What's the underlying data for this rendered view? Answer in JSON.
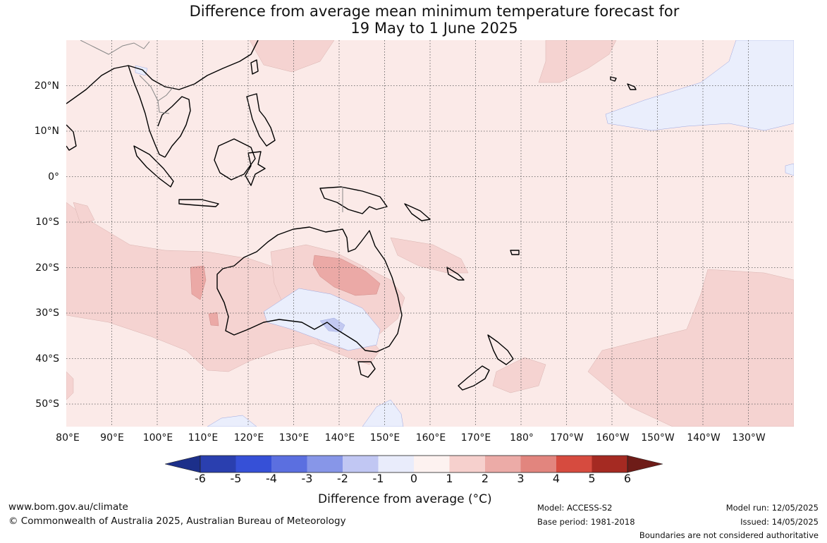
{
  "title": {
    "line1": "Difference from average mean minimum temperature forecast for",
    "line2": "19 May to 1 June 2025"
  },
  "map": {
    "lat_labels": [
      "20°N",
      "10°N",
      "0°",
      "10°S",
      "20°S",
      "30°S",
      "40°S",
      "50°S"
    ],
    "lon_labels": [
      "80°E",
      "90°E",
      "100°E",
      "110°E",
      "120°E",
      "130°E",
      "140°E",
      "150°E",
      "160°E",
      "170°E",
      "180°",
      "170°W",
      "160°W",
      "150°W",
      "140°W",
      "130°W"
    ],
    "extent": {
      "lon_min": 80,
      "lon_max": 240,
      "lat_min": -55,
      "lat_max": 30
    },
    "colors": {
      "ocean_base": "#fbeae8",
      "anomaly_1_2": "#f5d3d1",
      "anomaly_2_3": "#eba9a6",
      "anomaly_neg_0_1": "#eaeefc",
      "anomaly_neg_1_2": "#c3c9f1",
      "anomaly_neg_2_3": "#8a97e6",
      "coast": "#000000",
      "borders": "#888888",
      "grid": "#555555"
    }
  },
  "colorbar": {
    "ticks": [
      "-6",
      "-5",
      "-4",
      "-3",
      "-2",
      "-1",
      "0",
      "1",
      "2",
      "3",
      "4",
      "5",
      "6"
    ],
    "colors": [
      "#1c2f8a",
      "#2a3faf",
      "#3650d7",
      "#5b6fe0",
      "#8796e8",
      "#c1c7f3",
      "#e9ecfb",
      "#fdf2f0",
      "#f6d0cd",
      "#ecaba7",
      "#e2857e",
      "#d64b3f",
      "#a52a22",
      "#6e1c18"
    ],
    "label": "Difference from average (°C)"
  },
  "footer": {
    "website": "www.bom.gov.au/climate",
    "copyright": "© Commonwealth of Australia 2025, Australian Bureau of Meteorology",
    "model": "Model: ACCESS-S2",
    "base_period": "Base period: 1981-2018",
    "model_run": "Model run: 12/05/2025",
    "issued": "Issued: 14/05/2025",
    "disclaimer": "Boundaries are not considered authoritative"
  }
}
